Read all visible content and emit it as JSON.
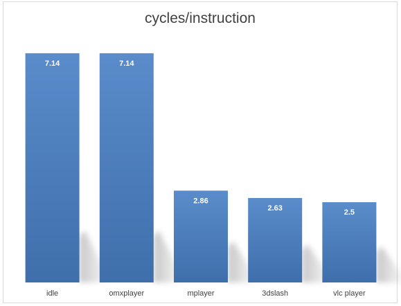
{
  "chart_data": {
    "type": "bar",
    "title": "cycles/instruction",
    "categories": [
      "idle",
      "omxplayer",
      "mplayer",
      "3dslash",
      "vlc player"
    ],
    "values": [
      7.14,
      7.14,
      2.86,
      2.63,
      2.5
    ],
    "data_labels": [
      "7.14",
      "7.14",
      "2.86",
      "2.63",
      "2.5"
    ],
    "xlabel": "",
    "ylabel": "",
    "ylim": [
      0,
      8
    ],
    "grid": false,
    "legend": "none",
    "colors": {
      "bar": "#4f81bd",
      "bar_dark": "#3d6ba3",
      "title": "#404040",
      "tick": "#404040",
      "border": "#d9d9d9"
    }
  }
}
